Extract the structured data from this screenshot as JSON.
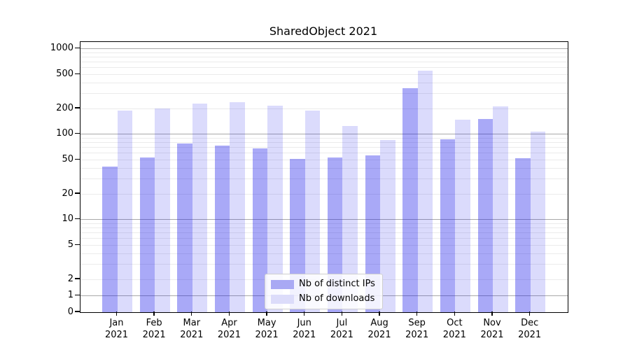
{
  "title": "SharedObject 2021",
  "chart_data": {
    "type": "bar",
    "title": "SharedObject 2021",
    "categories": [
      "Jan",
      "Feb",
      "Mar",
      "Apr",
      "May",
      "Jun",
      "Jul",
      "Aug",
      "Sep",
      "Oct",
      "Nov",
      "Dec"
    ],
    "category_year": "2021",
    "series": [
      {
        "name": "Nb of distinct IPs",
        "values": [
          42,
          53,
          78,
          73,
          68,
          51,
          53,
          56,
          345,
          88,
          150,
          52
        ],
        "color": "rgba(30,30,235,0.38)",
        "swatch_color": "#a9a9f4"
      },
      {
        "name": "Nb of downloads",
        "values": [
          190,
          199,
          230,
          235,
          215,
          190,
          125,
          85,
          550,
          147,
          213,
          107
        ],
        "color": "rgba(30,30,235,0.16)",
        "swatch_color": "#dcdcfa"
      }
    ],
    "yscale": "symlog",
    "ylim": [
      0,
      1200
    ],
    "yticks": [
      0,
      1,
      2,
      5,
      10,
      20,
      50,
      100,
      200,
      500,
      1000
    ],
    "grid_major": [
      1,
      10,
      100,
      1000
    ],
    "grid_minor": [
      2,
      3,
      4,
      5,
      6,
      7,
      8,
      9,
      20,
      30,
      40,
      50,
      60,
      70,
      80,
      90,
      200,
      300,
      400,
      500,
      600,
      700,
      800,
      900
    ],
    "grid": true,
    "legend_position": "lower center",
    "xlabel": "",
    "ylabel": ""
  }
}
